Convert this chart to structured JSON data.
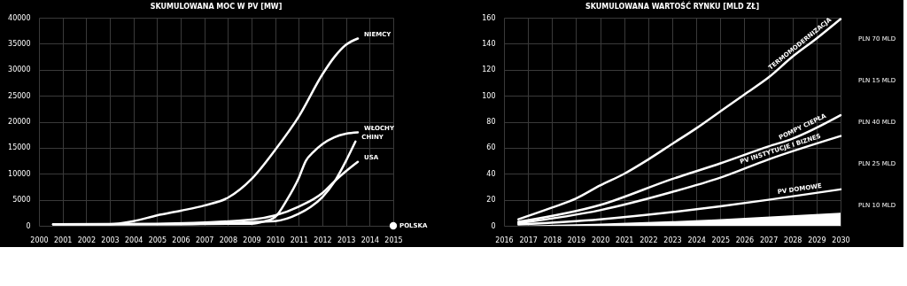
{
  "chart_data": [
    {
      "type": "line",
      "title": "SKUMULOWANA MOC W PV [MW]",
      "xlim": [
        2000,
        2015
      ],
      "xticks": [
        2000,
        2001,
        2002,
        2003,
        2004,
        2005,
        2006,
        2007,
        2008,
        2009,
        2010,
        2011,
        2012,
        2013,
        2014,
        2015
      ],
      "ylim": [
        0,
        40000
      ],
      "yticks": [
        0,
        5000,
        10000,
        15000,
        20000,
        25000,
        30000,
        35000,
        40000
      ],
      "grid": true,
      "series": [
        {
          "name": "NIEMCY",
          "color": "#ffffff",
          "x": [
            2000.6,
            2003,
            2004,
            2005,
            2006,
            2007,
            2008,
            2009,
            2010,
            2011,
            2012,
            2012.5,
            2013,
            2013.5
          ],
          "values": [
            300,
            300,
            900,
            2000,
            2900,
            3900,
            5400,
            9000,
            14600,
            21000,
            29100,
            32400,
            34800,
            36000
          ]
        },
        {
          "name": "WŁOCHY",
          "color": "#ffffff",
          "x": [
            2000.6,
            2005,
            2009,
            2009.5,
            2010,
            2010.5,
            2011,
            2011.3,
            2011.6,
            2012,
            2012.5,
            2013,
            2013.5
          ],
          "values": [
            300,
            300,
            400,
            800,
            1700,
            5000,
            9200,
            12500,
            14100,
            15700,
            17000,
            17700,
            17950
          ]
        },
        {
          "name": "CHINY",
          "color": "#ffffff",
          "x": [
            2000.6,
            2005,
            2010,
            2011,
            2011.5,
            2012,
            2012.5,
            2013,
            2013.4
          ],
          "values": [
            300,
            300,
            900,
            2300,
            3600,
            5500,
            8400,
            12500,
            16200
          ]
        },
        {
          "name": "USA",
          "color": "#ffffff",
          "x": [
            2000.6,
            2005,
            2009,
            2010,
            2011,
            2012,
            2012.5,
            2013,
            2013.5
          ],
          "values": [
            300,
            400,
            1200,
            2000,
            3700,
            6300,
            8500,
            10500,
            12300
          ]
        },
        {
          "name": "POLSKA",
          "color": "#ffffff",
          "type": "scatter",
          "x": [
            2015
          ],
          "values": [
            0
          ]
        }
      ]
    },
    {
      "type": "line",
      "title": "SKUMULOWANA WARTOŚĆ RYNKU [MLD ZŁ]",
      "xlim": [
        2016,
        2030
      ],
      "xticks": [
        2016,
        2017,
        2018,
        2019,
        2020,
        2021,
        2022,
        2023,
        2024,
        2025,
        2026,
        2027,
        2028,
        2029,
        2030
      ],
      "ylim": [
        0,
        160
      ],
      "yticks": [
        0,
        20,
        40,
        60,
        80,
        100,
        120,
        140,
        160
      ],
      "grid": true,
      "series": [
        {
          "type": "area",
          "color": "#ffffff",
          "x": [
            2016.6,
            2023,
            2030
          ],
          "values": [
            0,
            3.5,
            10
          ]
        },
        {
          "name": "PV DOMOWE",
          "color": "#ffffff",
          "x": [
            2016.6,
            2020,
            2023,
            2025,
            2027,
            2030
          ],
          "values": [
            1,
            5,
            10.5,
            15,
            20,
            28
          ]
        },
        {
          "name": "PV INSTYTUCJE I BIZNES",
          "color": "#ffffff",
          "x": [
            2016.6,
            2020,
            2023,
            2025,
            2027,
            2030
          ],
          "values": [
            2,
            12,
            26,
            37,
            51,
            69
          ]
        },
        {
          "name": "POMPY CIEPŁA",
          "color": "#ffffff",
          "x": [
            2016.6,
            2020,
            2023,
            2025,
            2027,
            2028,
            2030
          ],
          "values": [
            3,
            16,
            36,
            48,
            61,
            67,
            85
          ]
        },
        {
          "name": "TERMOMODERNIZACJA",
          "color": "#ffffff",
          "x": [
            2016.6,
            2018,
            2019,
            2020,
            2021,
            2022,
            2023,
            2024,
            2025,
            2026,
            2027,
            2028,
            2029,
            2030
          ],
          "values": [
            5,
            14,
            21,
            31,
            40,
            51,
            63,
            75,
            88,
            101,
            114,
            130,
            144,
            159
          ]
        }
      ],
      "annotations": [
        "PLN 70 MLD",
        "PLN 15 MLD",
        "PLN 40 MLD",
        "PLN 25 MLD",
        "PLN 10 MLD"
      ]
    }
  ]
}
